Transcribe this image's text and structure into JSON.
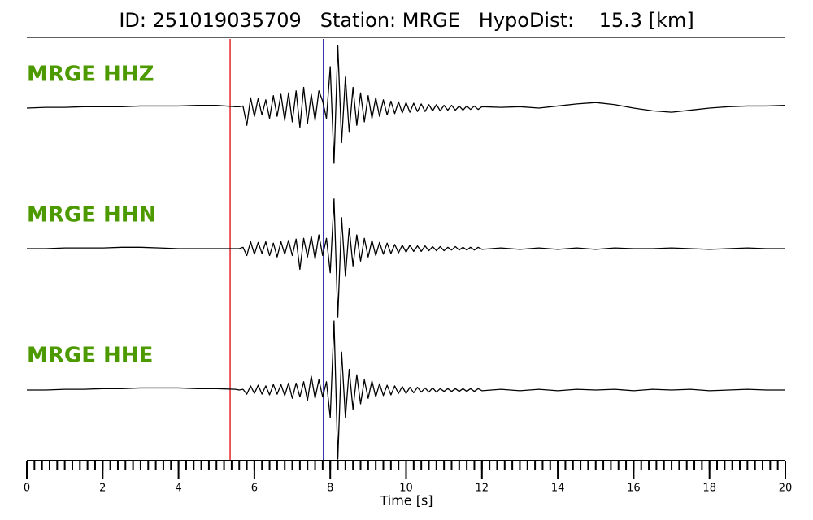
{
  "chart_data": {
    "type": "seismogram",
    "title": "ID: 251019035709   Station: MRGE   HypoDist:    15.3 [km]",
    "x_label": "Time [s]",
    "xlim": [
      0,
      20
    ],
    "xticks": [
      0,
      2,
      4,
      6,
      8,
      10,
      12,
      14,
      16,
      18,
      20
    ],
    "xminor": 0.2,
    "ylim": [
      -1,
      1
    ],
    "label_color": "#4d9a00",
    "markers": [
      {
        "x": 5.36,
        "color": "#e8262b"
      },
      {
        "x": 7.82,
        "color": "#2a2aa8"
      }
    ],
    "x": [
      0,
      0.5,
      1,
      1.5,
      2,
      2.5,
      3,
      3.5,
      4,
      4.5,
      5,
      5.5,
      5.6,
      5.7,
      5.8,
      5.9,
      6,
      6.1,
      6.2,
      6.3,
      6.4,
      6.5,
      6.6,
      6.7,
      6.8,
      6.9,
      7,
      7.1,
      7.2,
      7.3,
      7.4,
      7.5,
      7.6,
      7.7,
      7.8,
      7.9,
      8,
      8.1,
      8.2,
      8.3,
      8.4,
      8.5,
      8.6,
      8.7,
      8.8,
      8.9,
      9,
      9.1,
      9.2,
      9.3,
      9.4,
      9.5,
      9.6,
      9.7,
      9.8,
      9.9,
      10,
      10.1,
      10.2,
      10.3,
      10.4,
      10.5,
      10.6,
      10.7,
      10.8,
      10.9,
      11,
      11.1,
      11.2,
      11.3,
      11.4,
      11.5,
      11.6,
      11.7,
      11.8,
      11.9,
      12,
      12.5,
      13,
      13.5,
      14,
      14.5,
      15,
      15.5,
      16,
      16.5,
      17,
      17.5,
      18,
      18.5,
      19,
      19.5,
      20
    ],
    "series": [
      {
        "name": "MRGE HHZ",
        "color": "#000000",
        "values": [
          0,
          0.01,
          0.01,
          0.02,
          0.02,
          0.02,
          0.03,
          0.03,
          0.03,
          0.04,
          0.04,
          0.02,
          0.02,
          0.03,
          -0.25,
          0.15,
          -0.12,
          0.14,
          -0.1,
          0.12,
          -0.15,
          0.18,
          -0.12,
          0.2,
          -0.18,
          0.22,
          -0.2,
          0.25,
          -0.28,
          0.3,
          -0.22,
          0.2,
          -0.18,
          0.25,
          0.1,
          -0.15,
          0.6,
          -0.8,
          0.9,
          -0.5,
          0.45,
          -0.35,
          0.3,
          -0.25,
          0.22,
          -0.2,
          0.18,
          -0.15,
          0.15,
          -0.12,
          0.12,
          -0.1,
          0.1,
          -0.08,
          0.09,
          -0.07,
          0.08,
          -0.06,
          0.07,
          -0.05,
          0.06,
          -0.05,
          0.05,
          -0.04,
          0.05,
          -0.04,
          0.04,
          -0.03,
          0.04,
          -0.03,
          0.03,
          -0.03,
          0.03,
          -0.02,
          0.03,
          -0.02,
          0.02,
          0.01,
          0.02,
          0,
          0.03,
          0.06,
          0.08,
          0.05,
          0,
          -0.04,
          -0.06,
          -0.03,
          0,
          0.02,
          0.03,
          0.03,
          0.04
        ]
      },
      {
        "name": "MRGE HHN",
        "color": "#000000",
        "values": [
          0,
          0,
          0.01,
          0.01,
          0.01,
          0.02,
          0.02,
          0.01,
          0,
          0,
          0,
          0,
          0,
          0.02,
          -0.1,
          0.1,
          -0.08,
          0.09,
          -0.07,
          0.1,
          -0.1,
          0.08,
          -0.12,
          0.1,
          -0.08,
          0.12,
          -0.1,
          0.14,
          -0.3,
          0.15,
          -0.12,
          0.18,
          -0.15,
          0.2,
          -0.1,
          0.15,
          -0.35,
          0.72,
          -0.99,
          0.45,
          -0.4,
          0.3,
          -0.25,
          0.2,
          -0.18,
          0.15,
          -0.12,
          0.12,
          -0.1,
          0.09,
          -0.08,
          0.08,
          -0.07,
          0.06,
          -0.06,
          0.05,
          -0.05,
          0.05,
          -0.04,
          0.04,
          -0.04,
          0.04,
          -0.03,
          0.03,
          -0.03,
          0.03,
          -0.03,
          0.02,
          -0.02,
          0.03,
          -0.02,
          0.02,
          -0.02,
          0.02,
          -0.02,
          0.02,
          -0.01,
          0.01,
          -0.01,
          0.01,
          -0.01,
          0.01,
          -0.01,
          0.01,
          0,
          0,
          0.01,
          0,
          -0.01,
          0,
          0.01,
          0,
          0
        ]
      },
      {
        "name": "MRGE HHE",
        "color": "#000000",
        "values": [
          0,
          0,
          0.01,
          0.01,
          0.02,
          0.02,
          0.03,
          0.03,
          0.03,
          0.02,
          0.02,
          0.01,
          0,
          0.01,
          -0.06,
          0.06,
          -0.05,
          0.07,
          -0.06,
          0.06,
          -0.07,
          0.08,
          -0.06,
          0.08,
          -0.08,
          0.1,
          -0.12,
          0.1,
          -0.1,
          0.12,
          -0.15,
          0.2,
          -0.12,
          0.15,
          -0.1,
          0.12,
          -0.4,
          1.0,
          -1.0,
          0.55,
          -0.4,
          0.3,
          -0.28,
          0.22,
          -0.2,
          0.15,
          -0.12,
          0.13,
          -0.1,
          0.09,
          -0.08,
          0.07,
          -0.07,
          0.06,
          -0.05,
          0.05,
          -0.05,
          0.04,
          -0.04,
          0.04,
          -0.03,
          0.03,
          -0.03,
          0.03,
          -0.03,
          0.02,
          -0.02,
          0.02,
          -0.02,
          0.02,
          -0.02,
          0.02,
          -0.02,
          0.02,
          -0.02,
          0.02,
          -0.01,
          0.01,
          -0.01,
          0.01,
          -0.01,
          0.01,
          0,
          0.01,
          -0.01,
          0.01,
          0,
          0.01,
          -0.01,
          0,
          0.01,
          0,
          0
        ]
      }
    ]
  }
}
